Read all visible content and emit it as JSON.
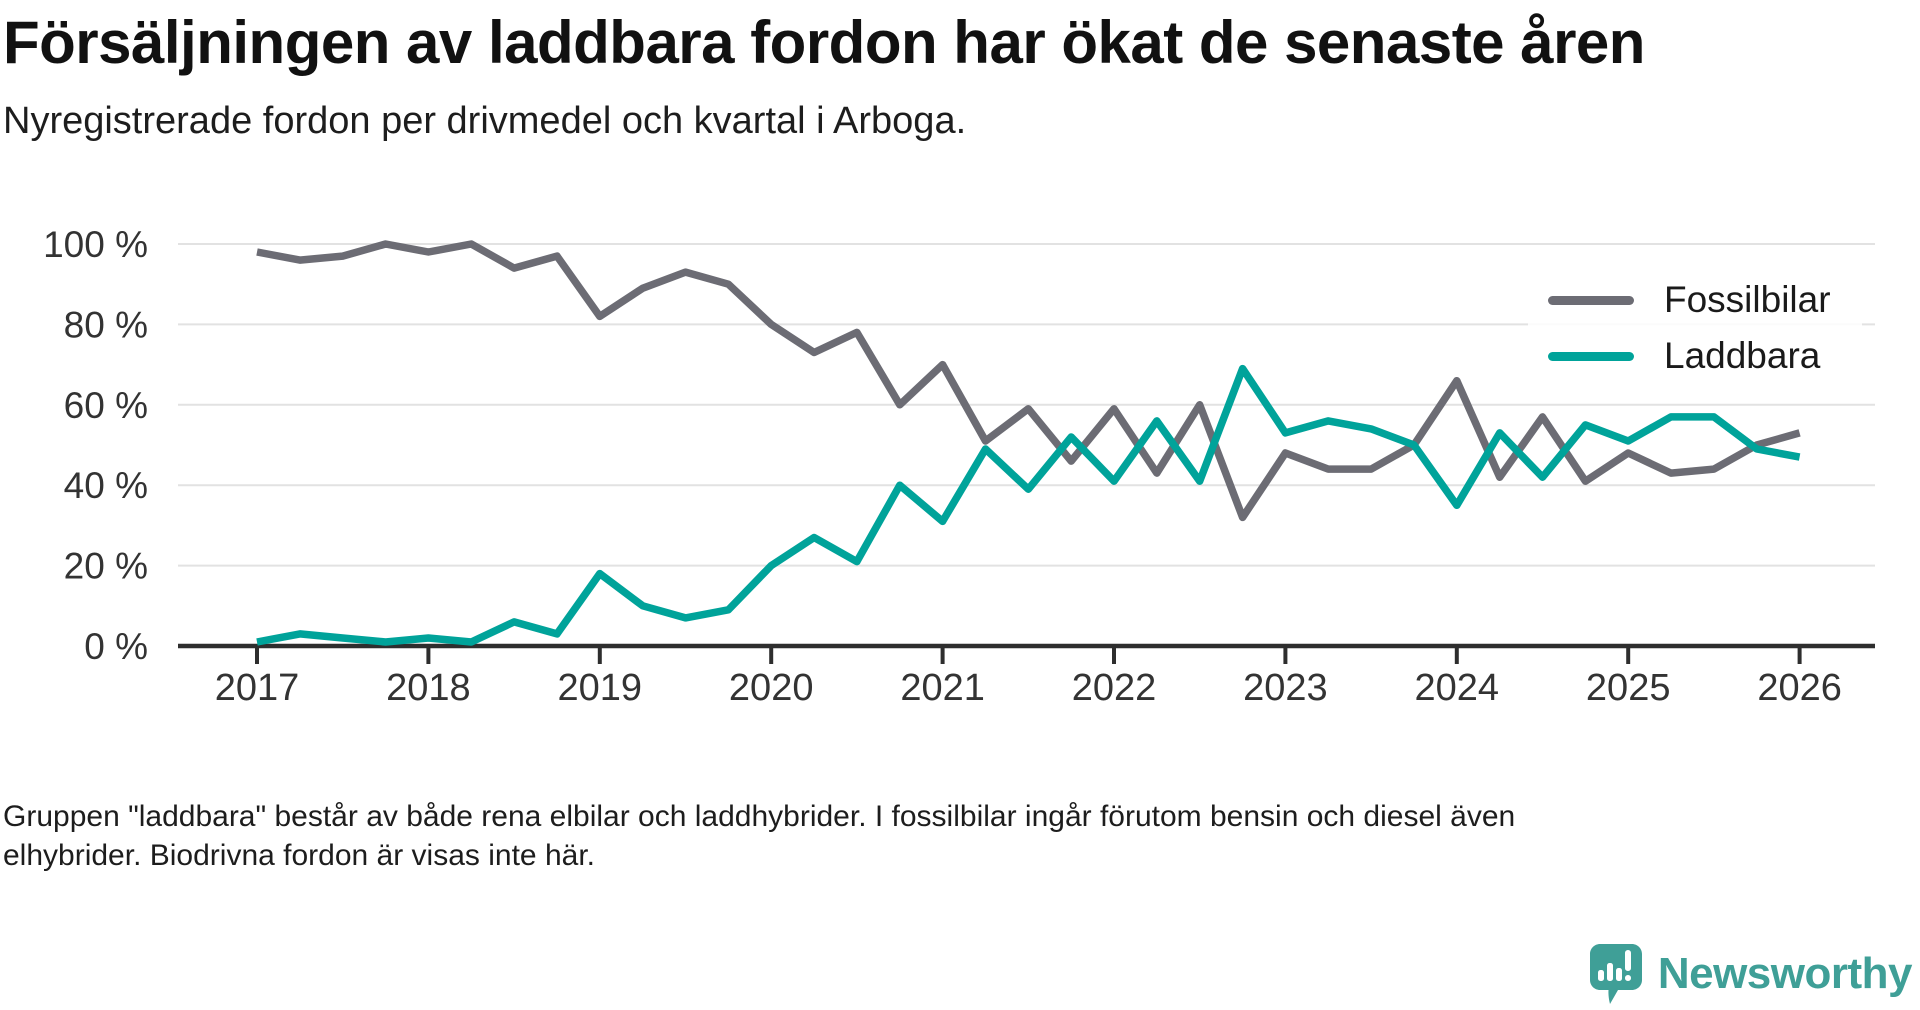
{
  "header": {
    "title": "Försäljningen av laddbara fordon har ökat de senaste åren",
    "subtitle": "Nyregistrerade fordon per drivmedel och kvartal i Arboga."
  },
  "chart_data": {
    "type": "line",
    "x_start": "2017 Q1",
    "x_interval": "quarter",
    "x_labels": [
      "2017",
      "2018",
      "2019",
      "2020",
      "2021",
      "2022",
      "2023",
      "2024",
      "2025",
      "2026"
    ],
    "y_ticks": [
      "100 %",
      "80 %",
      "60 %",
      "40 %",
      "20 %",
      "0 %"
    ],
    "y_tick_values": [
      100,
      80,
      60,
      40,
      20,
      0
    ],
    "ylim": [
      0,
      100
    ],
    "unit": "%",
    "grid": "horizontal",
    "legend_position": "top-right",
    "series": [
      {
        "name": "Fossilbilar",
        "color": "#6c6c74",
        "values": [
          98,
          96,
          97,
          100,
          98,
          100,
          94,
          97,
          82,
          89,
          93,
          90,
          80,
          73,
          78,
          60,
          70,
          51,
          59,
          46,
          59,
          43,
          60,
          32,
          48,
          44,
          44,
          50,
          66,
          42,
          57,
          41,
          48,
          43,
          44,
          50,
          53
        ]
      },
      {
        "name": "Laddbara",
        "color": "#00a39a",
        "values": [
          1,
          3,
          2,
          1,
          2,
          1,
          6,
          3,
          18,
          10,
          7,
          9,
          20,
          27,
          21,
          40,
          31,
          49,
          39,
          52,
          41,
          56,
          41,
          69,
          53,
          56,
          54,
          50,
          35,
          53,
          42,
          55,
          51,
          57,
          57,
          49,
          47
        ]
      }
    ]
  },
  "legend": {
    "items": [
      {
        "label": "Fossilbilar",
        "color": "#6c6c74"
      },
      {
        "label": "Laddbara",
        "color": "#00a39a"
      }
    ]
  },
  "footer": {
    "line1": "Gruppen \"laddbara\" består av både rena elbilar och laddhybrider. I fossilbilar ingår förutom bensin och diesel även",
    "line2": "elhybrider. Biodrivna fordon är visas inte här."
  },
  "logo": {
    "text": "Newsworthy",
    "color": "#3f9f97"
  }
}
